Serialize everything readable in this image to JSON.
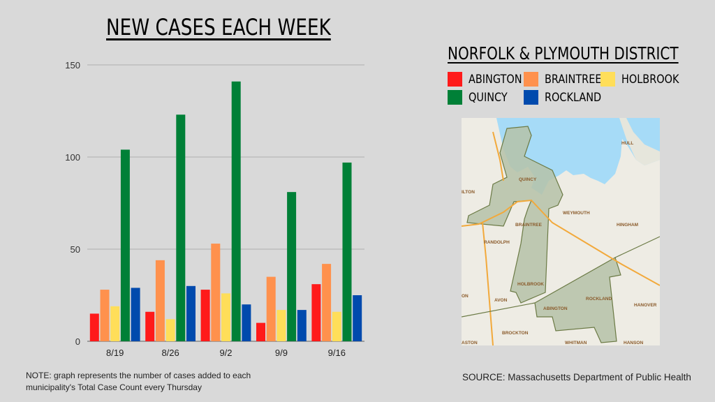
{
  "chart_data": {
    "type": "bar",
    "title": "NEW CASES EACH WEEK",
    "xlabel": "",
    "ylabel": "",
    "ylim": [
      0,
      150
    ],
    "yticks": [
      0,
      50,
      100,
      150
    ],
    "grid": true,
    "legend_placement": "right",
    "categories": [
      "8/19",
      "8/26",
      "9/2",
      "9/9",
      "9/16"
    ],
    "series": [
      {
        "name": "ABINGTON",
        "color": "#ff1a1a",
        "values": [
          15,
          16,
          28,
          10,
          31
        ]
      },
      {
        "name": "BRAINTREE",
        "color": "#ff914d",
        "values": [
          28,
          44,
          53,
          35,
          42
        ]
      },
      {
        "name": "HOLBROOK",
        "color": "#ffde59",
        "values": [
          19,
          12,
          26,
          17,
          16
        ]
      },
      {
        "name": "QUINCY",
        "color": "#008037",
        "values": [
          104,
          123,
          141,
          81,
          97
        ]
      },
      {
        "name": "ROCKLAND",
        "color": "#004aad",
        "values": [
          29,
          30,
          20,
          17,
          25
        ]
      }
    ]
  },
  "legend_title": "NORFOLK & PLYMOUTH DISTRICT",
  "note": "NOTE: graph represents the number of cases added to each municipality's Total Case Count every Thursday",
  "source": "SOURCE: Massachusetts Department of Public Health",
  "map": {
    "labels": [
      "QUINCY",
      "WEYMOUTH",
      "HINGHAM",
      "BRAINTREE",
      "RANDOLPH",
      "HOLBROOK",
      "AVON",
      "ABINGTON",
      "ROCKLAND",
      "HANOVER",
      "BROCKTON",
      "WHITMAN",
      "HANSON",
      "HULL",
      "ILTON",
      "ON",
      "ASTON"
    ],
    "colors": {
      "land": "#eeece4",
      "water": "#a6dbf7",
      "district": "#b5c2a8",
      "border": "#6b7a45",
      "highway": "#f2a93b"
    }
  }
}
